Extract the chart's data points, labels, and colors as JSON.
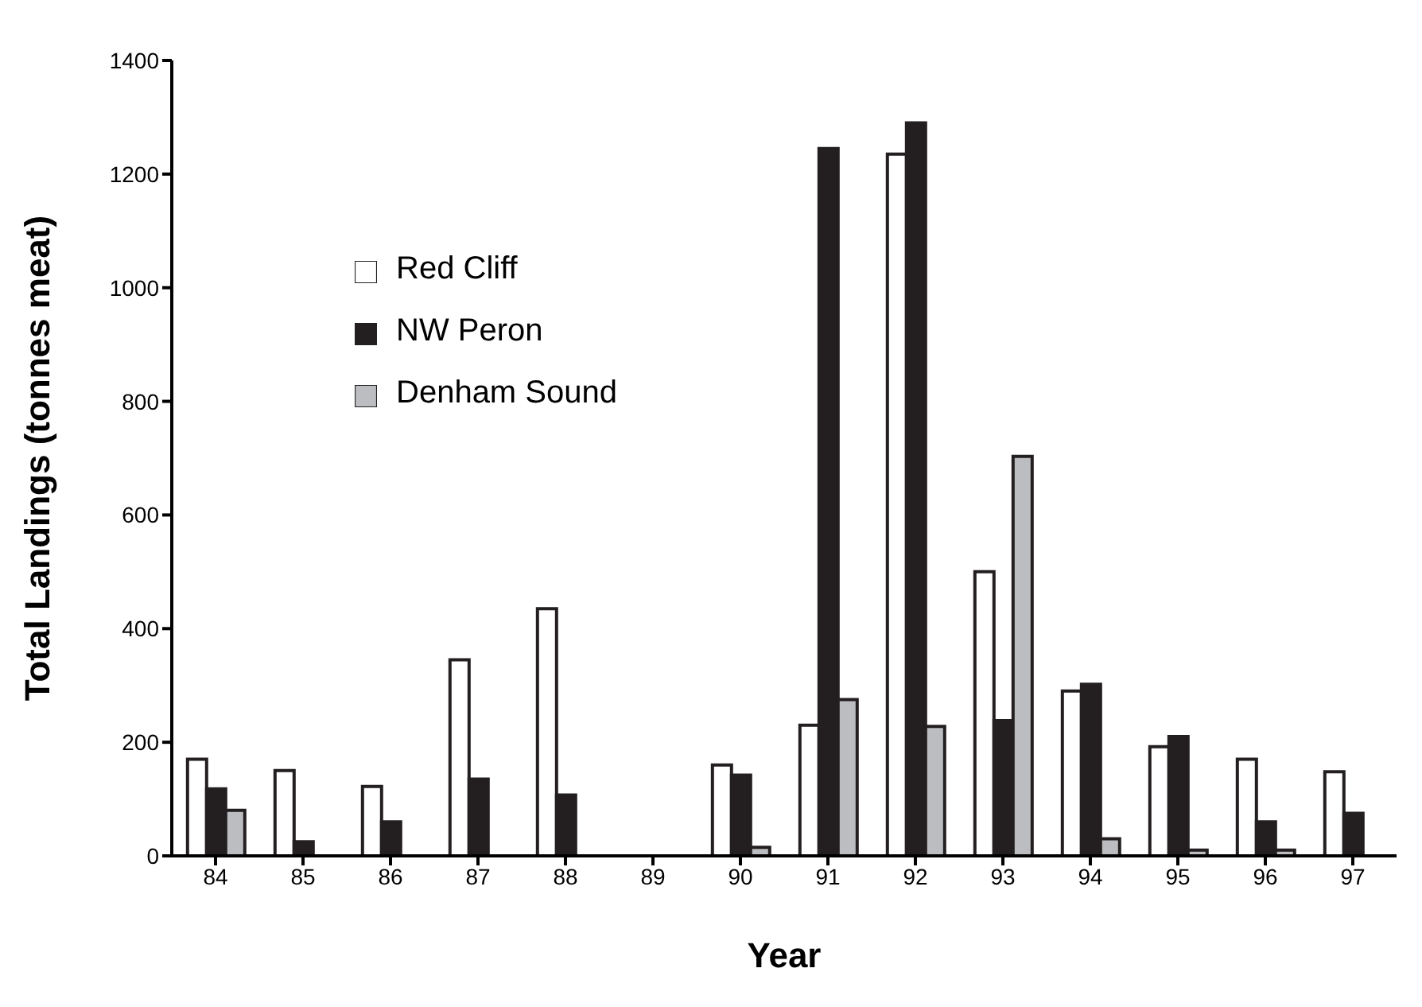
{
  "chart_data": {
    "type": "bar",
    "xlabel": "Year",
    "ylabel": "Total Landings (tonnes meat)",
    "categories": [
      "84",
      "85",
      "86",
      "87",
      "88",
      "89",
      "90",
      "91",
      "92",
      "93",
      "94",
      "95",
      "96",
      "97"
    ],
    "series": [
      {
        "name": "Red Cliff",
        "color": "#ffffff",
        "values": [
          170,
          150,
          122,
          345,
          435,
          0,
          160,
          230,
          1235,
          500,
          290,
          192,
          170,
          148
        ]
      },
      {
        "name": "NW Peron",
        "color": "#231f20",
        "values": [
          118,
          25,
          60,
          135,
          107,
          0,
          142,
          1245,
          1290,
          238,
          302,
          210,
          60,
          75
        ]
      },
      {
        "name": "Denham Sound",
        "color": "#bcbdc0",
        "values": [
          80,
          0,
          0,
          0,
          0,
          0,
          15,
          275,
          228,
          703,
          30,
          10,
          10,
          0
        ]
      }
    ],
    "ylim": [
      0,
      1400
    ],
    "yticks": [
      0,
      200,
      400,
      600,
      800,
      1000,
      1200,
      1400
    ],
    "grid": false,
    "legend": "top left"
  }
}
